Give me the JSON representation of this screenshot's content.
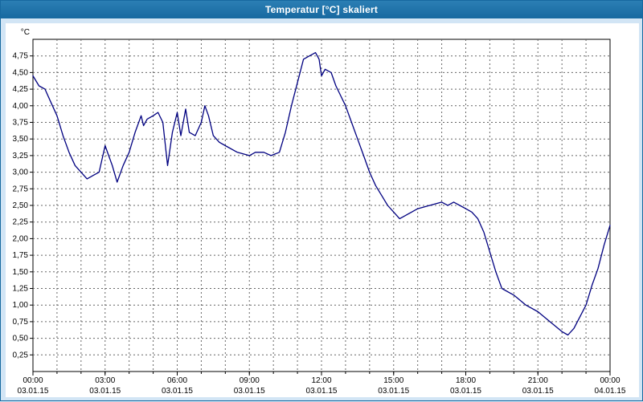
{
  "window": {
    "title": "Temperatur [°C] skaliert"
  },
  "colors": {
    "titlebar": "#1769a0",
    "page_bg": "#d2e5f5",
    "panel_bg": "#ffffff",
    "grid": "#666666",
    "axis": "#000000",
    "line": "#000080"
  },
  "chart_data": {
    "type": "line",
    "title": "Temperatur [°C] skaliert",
    "xlabel": "",
    "ylabel": "°C",
    "ylim": [
      0,
      5
    ],
    "xlim_hours": [
      0,
      24
    ],
    "grid": "dashed",
    "legend": "none",
    "y_ticks": [
      "4,75",
      "4,50",
      "4,25",
      "4,00",
      "3,75",
      "3,50",
      "3,25",
      "3,00",
      "2,75",
      "2,50",
      "2,25",
      "2,00",
      "1,75",
      "1,50",
      "1,25",
      "1,00",
      "0,75",
      "0,50",
      "0,25"
    ],
    "x_ticks": [
      {
        "time": "00:00",
        "date": "03.01.15",
        "hour": 0
      },
      {
        "time": "03:00",
        "date": "03.01.15",
        "hour": 3
      },
      {
        "time": "06:00",
        "date": "03.01.15",
        "hour": 6
      },
      {
        "time": "09:00",
        "date": "03.01.15",
        "hour": 9
      },
      {
        "time": "12:00",
        "date": "03.01.15",
        "hour": 12
      },
      {
        "time": "15:00",
        "date": "03.01.15",
        "hour": 15
      },
      {
        "time": "18:00",
        "date": "03.01.15",
        "hour": 18
      },
      {
        "time": "21:00",
        "date": "03.01.15",
        "hour": 21
      },
      {
        "time": "00:00",
        "date": "04.01.15",
        "hour": 24
      }
    ],
    "series": [
      {
        "name": "Temperatur [°C]",
        "color": "#000080",
        "points": [
          [
            0,
            4.45
          ],
          [
            0.25,
            4.3
          ],
          [
            0.5,
            4.25
          ],
          [
            0.75,
            4.05
          ],
          [
            1,
            3.85
          ],
          [
            1.25,
            3.55
          ],
          [
            1.5,
            3.3
          ],
          [
            1.75,
            3.1
          ],
          [
            2,
            3.0
          ],
          [
            2.25,
            2.9
          ],
          [
            2.5,
            2.95
          ],
          [
            2.75,
            3.0
          ],
          [
            3,
            3.4
          ],
          [
            3.15,
            3.25
          ],
          [
            3.3,
            3.1
          ],
          [
            3.5,
            2.85
          ],
          [
            3.75,
            3.1
          ],
          [
            4,
            3.3
          ],
          [
            4.25,
            3.6
          ],
          [
            4.5,
            3.85
          ],
          [
            4.6,
            3.7
          ],
          [
            4.75,
            3.8
          ],
          [
            5,
            3.85
          ],
          [
            5.2,
            3.9
          ],
          [
            5.4,
            3.75
          ],
          [
            5.6,
            3.1
          ],
          [
            5.8,
            3.6
          ],
          [
            6,
            3.9
          ],
          [
            6.15,
            3.55
          ],
          [
            6.35,
            3.95
          ],
          [
            6.5,
            3.6
          ],
          [
            6.75,
            3.55
          ],
          [
            7,
            3.75
          ],
          [
            7.15,
            4.0
          ],
          [
            7.3,
            3.85
          ],
          [
            7.5,
            3.55
          ],
          [
            7.75,
            3.45
          ],
          [
            8,
            3.4
          ],
          [
            8.5,
            3.3
          ],
          [
            9,
            3.25
          ],
          [
            9.25,
            3.3
          ],
          [
            9.6,
            3.3
          ],
          [
            9.9,
            3.25
          ],
          [
            10.25,
            3.3
          ],
          [
            10.5,
            3.6
          ],
          [
            10.75,
            4.0
          ],
          [
            11,
            4.35
          ],
          [
            11.25,
            4.7
          ],
          [
            11.5,
            4.75
          ],
          [
            11.75,
            4.8
          ],
          [
            11.9,
            4.7
          ],
          [
            12,
            4.45
          ],
          [
            12.15,
            4.55
          ],
          [
            12.4,
            4.5
          ],
          [
            12.6,
            4.3
          ],
          [
            12.8,
            4.15
          ],
          [
            13,
            4.0
          ],
          [
            13.25,
            3.75
          ],
          [
            13.5,
            3.5
          ],
          [
            13.75,
            3.25
          ],
          [
            14,
            3.0
          ],
          [
            14.25,
            2.8
          ],
          [
            14.5,
            2.65
          ],
          [
            14.75,
            2.5
          ],
          [
            15,
            2.4
          ],
          [
            15.25,
            2.3
          ],
          [
            15.5,
            2.35
          ],
          [
            16,
            2.45
          ],
          [
            16.5,
            2.5
          ],
          [
            17,
            2.55
          ],
          [
            17.25,
            2.5
          ],
          [
            17.5,
            2.55
          ],
          [
            17.75,
            2.5
          ],
          [
            18,
            2.45
          ],
          [
            18.25,
            2.4
          ],
          [
            18.5,
            2.3
          ],
          [
            18.75,
            2.1
          ],
          [
            19,
            1.8
          ],
          [
            19.25,
            1.5
          ],
          [
            19.5,
            1.25
          ],
          [
            20,
            1.15
          ],
          [
            20.5,
            1.0
          ],
          [
            21,
            0.9
          ],
          [
            21.5,
            0.75
          ],
          [
            22,
            0.6
          ],
          [
            22.25,
            0.55
          ],
          [
            22.5,
            0.65
          ],
          [
            23,
            1.0
          ],
          [
            23.25,
            1.3
          ],
          [
            23.5,
            1.55
          ],
          [
            23.75,
            1.9
          ],
          [
            24,
            2.2
          ]
        ]
      }
    ]
  }
}
